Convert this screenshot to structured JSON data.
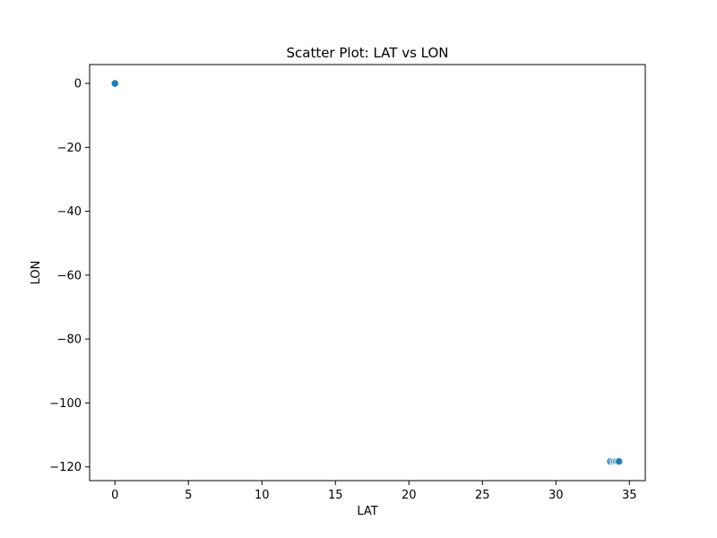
{
  "chart_data": {
    "type": "scatter",
    "title": "Scatter Plot: LAT vs LON",
    "xlabel": "LAT",
    "ylabel": "LON",
    "xlim": [
      -1.72,
      36.08
    ],
    "ylim": [
      -124.3,
      5.9
    ],
    "xticks": [
      0,
      5,
      10,
      15,
      20,
      25,
      30,
      35
    ],
    "xtick_labels": [
      "0",
      "5",
      "10",
      "15",
      "20",
      "25",
      "30",
      "35"
    ],
    "yticks": [
      0,
      -20,
      -40,
      -60,
      -80,
      -100,
      -120
    ],
    "ytick_labels": [
      "0",
      "−20",
      "−40",
      "−60",
      "−80",
      "−100",
      "−120"
    ],
    "grid": false,
    "color": "#1f77b4",
    "series": [
      {
        "x": [
          0,
          0,
          33.7,
          33.9,
          34.0,
          34.1,
          34.2,
          34.3
        ],
        "y": [
          0,
          0,
          -118.3,
          -118.3,
          -118.3,
          -118.3,
          -118.3,
          -118.3
        ]
      }
    ]
  }
}
